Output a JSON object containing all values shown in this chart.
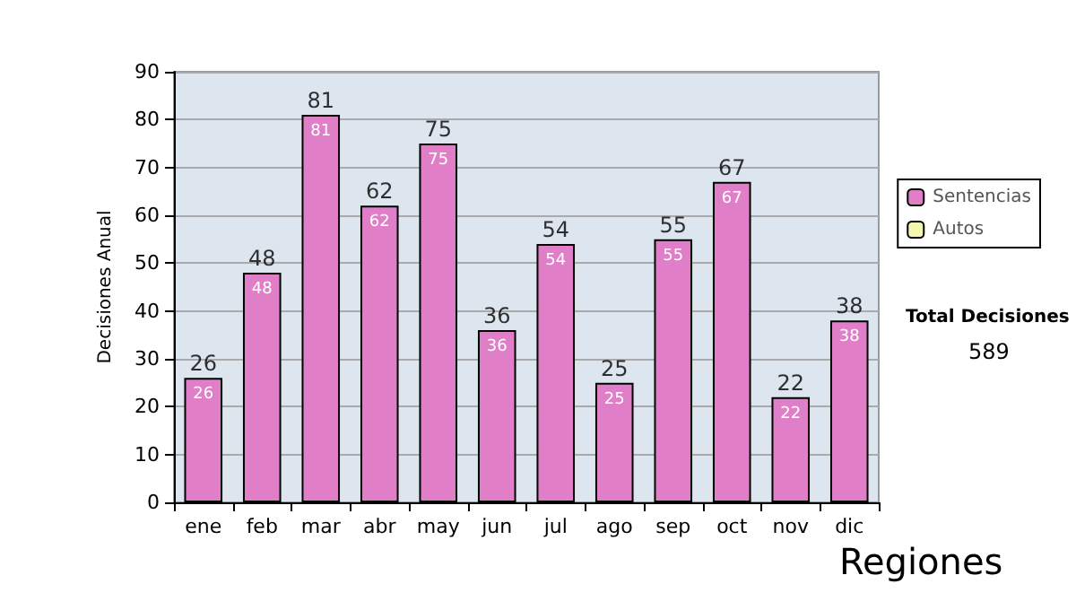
{
  "chart_data": {
    "type": "bar",
    "stacked": true,
    "ylabel": "Decisiones Anual",
    "categories": [
      "ene",
      "feb",
      "mar",
      "abr",
      "may",
      "jun",
      "jul",
      "ago",
      "sep",
      "oct",
      "nov",
      "dic"
    ],
    "series": [
      {
        "name": "Sentencias",
        "color": "#e07fc8",
        "values": [
          26,
          48,
          81,
          62,
          75,
          36,
          54,
          25,
          55,
          67,
          22,
          38
        ]
      },
      {
        "name": "Autos",
        "color": "#f4f7b0",
        "values": [
          null,
          null,
          null,
          null,
          null,
          null,
          null,
          null,
          null,
          null,
          null,
          null
        ]
      }
    ],
    "data_labels": true,
    "totals": [
      "26",
      "48",
      "81",
      "62",
      "75",
      "36",
      "54",
      "25",
      "55",
      "67",
      "22",
      "38"
    ],
    "ylim": [
      0,
      90
    ],
    "yticks": [
      0,
      10,
      20,
      30,
      40,
      50,
      60,
      70,
      80,
      90
    ],
    "grid": "y",
    "legend": "right",
    "annotations": [
      "Total Decisiones",
      "589",
      "Regiones"
    ]
  }
}
